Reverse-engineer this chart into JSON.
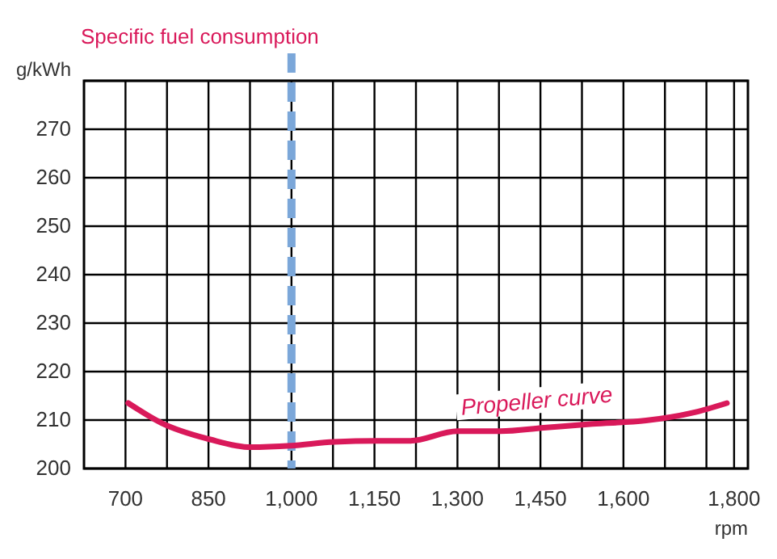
{
  "chart_data": {
    "type": "line",
    "title": "Specific fuel consumption",
    "xlabel": "rpm",
    "ylabel": "g/kWh",
    "xlim": [
      625,
      1825
    ],
    "ylim": [
      200,
      280
    ],
    "xticks": [
      {
        "value": 700,
        "label": "700"
      },
      {
        "value": 775,
        "label": null
      },
      {
        "value": 850,
        "label": "850"
      },
      {
        "value": 925,
        "label": null
      },
      {
        "value": 1000,
        "label": "1,000"
      },
      {
        "value": 1075,
        "label": null
      },
      {
        "value": 1150,
        "label": "1,150"
      },
      {
        "value": 1225,
        "label": null
      },
      {
        "value": 1300,
        "label": "1,300"
      },
      {
        "value": 1375,
        "label": null
      },
      {
        "value": 1450,
        "label": "1,450"
      },
      {
        "value": 1525,
        "label": null
      },
      {
        "value": 1600,
        "label": "1,600"
      },
      {
        "value": 1675,
        "label": null
      },
      {
        "value": 1750,
        "label": null
      },
      {
        "value": 1800,
        "label": "1,800"
      }
    ],
    "yticks": [
      200,
      210,
      220,
      230,
      240,
      250,
      260,
      270,
      {
        "value": 280,
        "label": null
      }
    ],
    "grid": true,
    "line_style": "solid",
    "marker": "none",
    "ref_lines": [
      {
        "axis": "x",
        "value": 1000,
        "color": "#7ba7d9",
        "line_style": "dashed"
      }
    ],
    "series": [
      {
        "name": "Propeller curve",
        "color": "#d9195a",
        "x": [
          705,
          765,
          853,
          926,
          999,
          1077,
          1154,
          1213,
          1300,
          1378,
          1456,
          1544,
          1641,
          1729,
          1787
        ],
        "values": [
          213.5,
          209.4,
          206,
          204.4,
          204.7,
          205.5,
          205.7,
          205.7,
          207.7,
          207.7,
          208.4,
          209.2,
          209.9,
          211.6,
          213.5
        ]
      }
    ]
  }
}
